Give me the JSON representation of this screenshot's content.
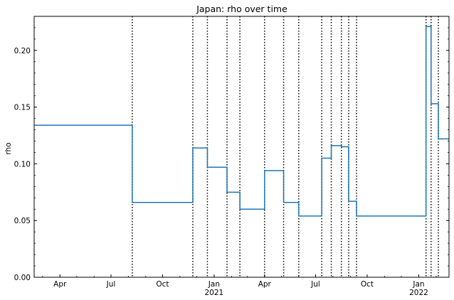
{
  "chart_data": {
    "type": "line",
    "title": "Japan: rho over time",
    "xlabel": "",
    "ylabel": "rho",
    "xlim": [
      "2020-02-15",
      "2022-02-24"
    ],
    "ylim": [
      0,
      0.23
    ],
    "grid": false,
    "legend": "none",
    "line_color": "#1f77b4",
    "changepoint_color": "#000000",
    "x_ticks": [
      {
        "date": "2020-04-01",
        "label": "Apr",
        "sublabel": ""
      },
      {
        "date": "2020-07-01",
        "label": "Jul",
        "sublabel": ""
      },
      {
        "date": "2020-10-01",
        "label": "Oct",
        "sublabel": ""
      },
      {
        "date": "2021-01-01",
        "label": "Jan",
        "sublabel": "2021"
      },
      {
        "date": "2021-04-01",
        "label": "Apr",
        "sublabel": ""
      },
      {
        "date": "2021-07-01",
        "label": "Jul",
        "sublabel": ""
      },
      {
        "date": "2021-10-01",
        "label": "Oct",
        "sublabel": ""
      },
      {
        "date": "2022-01-01",
        "label": "Jan",
        "sublabel": "2022"
      }
    ],
    "y_ticks": [
      {
        "value": 0.0,
        "label": "0.00"
      },
      {
        "value": 0.05,
        "label": "0.05"
      },
      {
        "value": 0.1,
        "label": "0.10"
      },
      {
        "value": 0.15,
        "label": "0.15"
      },
      {
        "value": 0.2,
        "label": "0.20"
      }
    ],
    "changepoints": [
      "2020-08-08",
      "2020-11-24",
      "2020-12-20",
      "2021-01-24",
      "2021-02-16",
      "2021-04-01",
      "2021-05-05",
      "2021-06-01",
      "2021-07-12",
      "2021-07-29",
      "2021-08-16",
      "2021-08-29",
      "2021-09-12",
      "2022-01-14",
      "2022-01-23",
      "2022-02-05"
    ],
    "series": [
      {
        "x": [
          "2020-02-15",
          "2020-08-08",
          "2020-11-24",
          "2020-12-20",
          "2021-01-24",
          "2021-02-16",
          "2021-04-01",
          "2021-05-05",
          "2021-06-01",
          "2021-07-12",
          "2021-07-29",
          "2021-08-16",
          "2021-08-29",
          "2021-09-12",
          "2022-01-14",
          "2022-01-23",
          "2022-02-05",
          "2022-02-24"
        ],
        "values": [
          0.134,
          0.066,
          0.114,
          0.097,
          0.075,
          0.06,
          0.094,
          0.066,
          0.054,
          0.105,
          0.116,
          0.115,
          0.067,
          0.054,
          0.221,
          0.153,
          0.122,
          0.122
        ]
      }
    ]
  }
}
